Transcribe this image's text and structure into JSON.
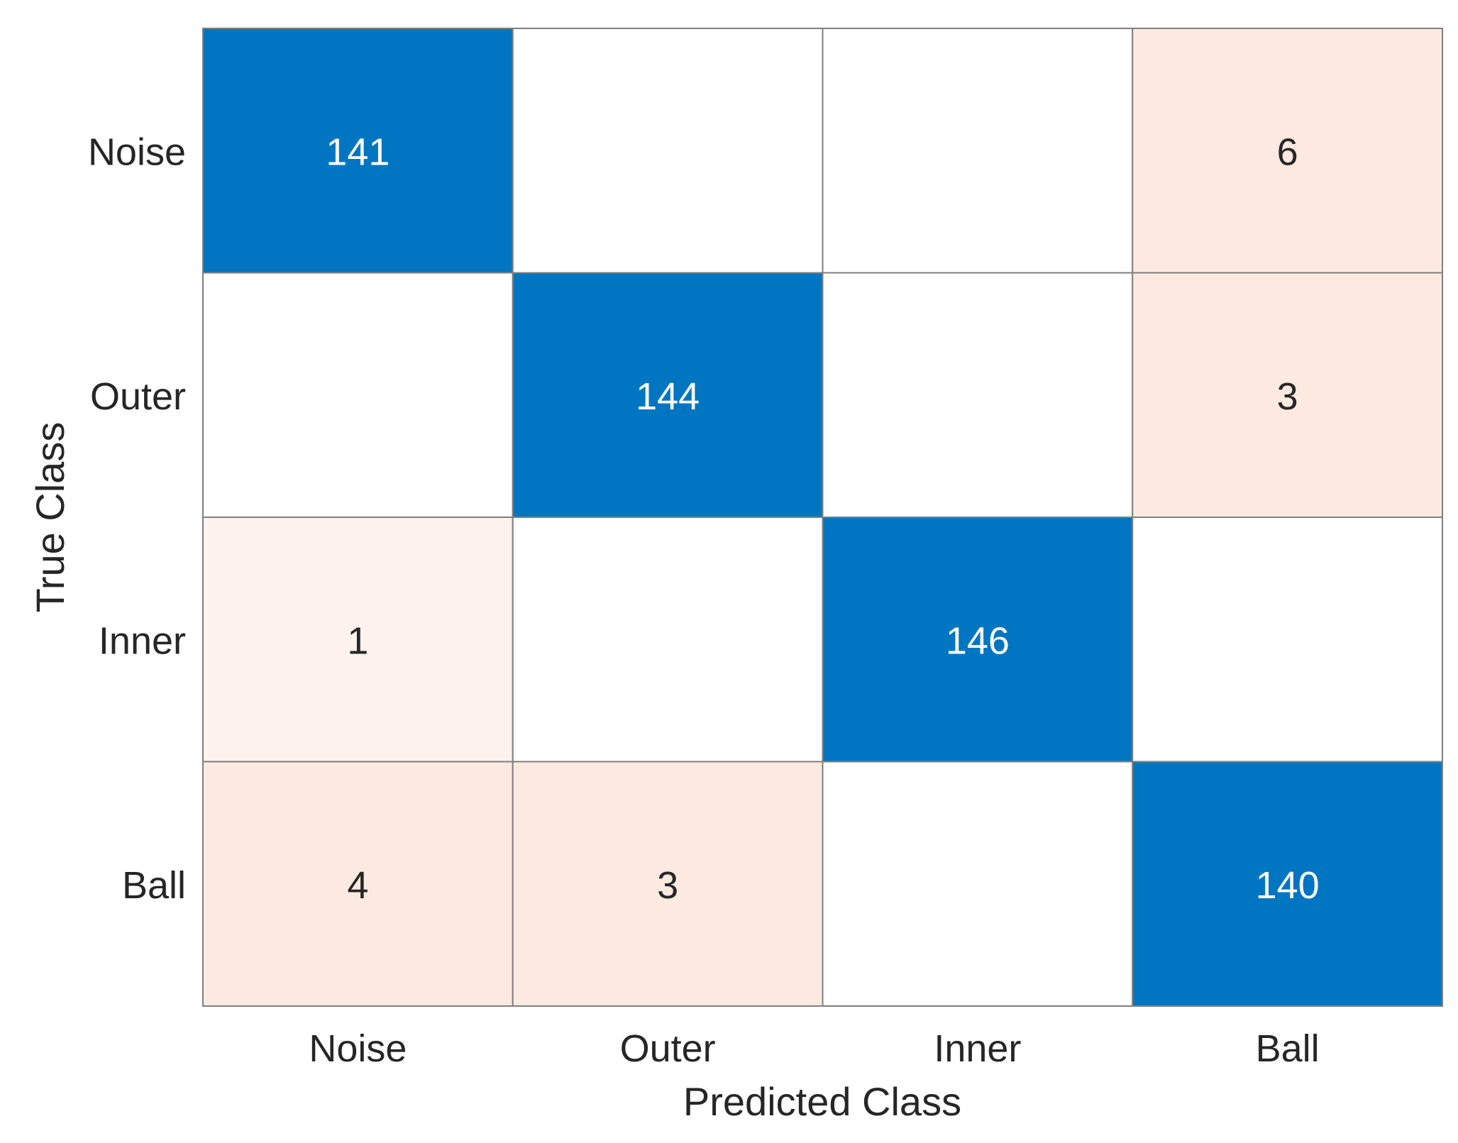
{
  "chart_data": {
    "type": "heatmap",
    "title": "",
    "xlabel": "Predicted Class",
    "ylabel": "True Class",
    "x_categories": [
      "Noise",
      "Outer",
      "Inner",
      "Ball"
    ],
    "y_categories": [
      "Noise",
      "Outer",
      "Inner",
      "Ball"
    ],
    "values": [
      [
        141,
        null,
        null,
        6
      ],
      [
        null,
        144,
        null,
        3
      ],
      [
        1,
        null,
        146,
        null
      ],
      [
        4,
        3,
        null,
        140
      ]
    ],
    "colors": {
      "diagonal": "#0076C2",
      "off_diagonal_high": "#FCEAE1",
      "off_diagonal_low": "#FDF2ED",
      "empty": "#FFFFFF",
      "grid": "#7F7F7F",
      "text_dark": "#262626",
      "text_light": "#FFFFFF"
    }
  }
}
